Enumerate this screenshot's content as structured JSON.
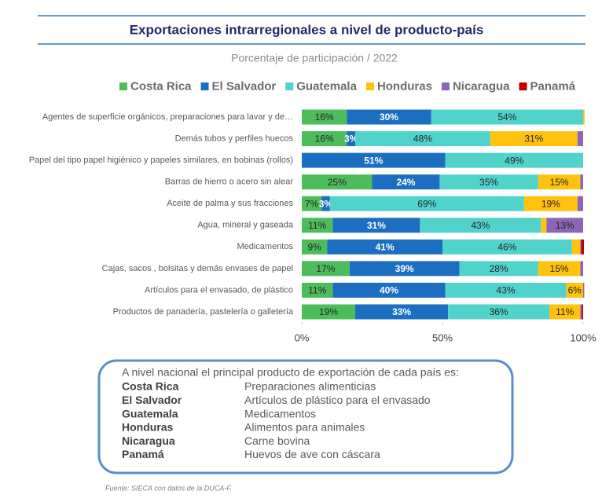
{
  "chart_data": {
    "type": "bar",
    "orientation": "horizontal",
    "stacked": true,
    "title": "Exportaciones intrarregionales a nivel de producto-país",
    "subtitle": "Porcentaje de participación / 2022",
    "categories": [
      "Agentes de superficie orgánicos, preparaciones para lavar y de…",
      "Demás tubos y perfiles huecos",
      "Papel del tipo papel higiénico y papeles similares, en bobinas (rollos)",
      "Barras de hierro o acero sin alear",
      "Aceite de palma y sus fracciones",
      "Agua, mineral y gaseada",
      "Medicamentos",
      "Cajas, sacos , bolsitas  y demás envases de papel",
      "Artículos para el  envasado, de plástico",
      "Productos de panadería, pastelería o galletería"
    ],
    "series": [
      {
        "name": "Costa Rica",
        "color": "#4dbd5b",
        "values": [
          16,
          16,
          0,
          25,
          7,
          11,
          9,
          17,
          11,
          19
        ],
        "value_labels": [
          "16%",
          "16%",
          null,
          "25%",
          "7%",
          "11%",
          "9%",
          "17%",
          "11%",
          "19%"
        ]
      },
      {
        "name": "El Salvador",
        "color": "#1c6ec0",
        "values": [
          30,
          3,
          51,
          24,
          3,
          31,
          41,
          39,
          40,
          33
        ],
        "value_labels": [
          "30%",
          "3%",
          "51%",
          "24%",
          "3%",
          "31%",
          "41%",
          "39%",
          "40%",
          "33%"
        ]
      },
      {
        "name": "Guatemala",
        "color": "#4fd3cb",
        "values": [
          54,
          48,
          49,
          35,
          69,
          43,
          46,
          28,
          43,
          36
        ],
        "value_labels": [
          "54%",
          "48%",
          "49%",
          "35%",
          "69%",
          "43%",
          "46%",
          "28%",
          "43%",
          "36%"
        ]
      },
      {
        "name": "Honduras",
        "color": "#ffc20e",
        "values": [
          0.5,
          31,
          0,
          15,
          19,
          2,
          3,
          15,
          6,
          11
        ],
        "value_labels": [
          null,
          "31%",
          null,
          "15%",
          "19%",
          null,
          null,
          "15%",
          "6%",
          "11%"
        ]
      },
      {
        "name": "Nicaragua",
        "color": "#8b65b7",
        "values": [
          0,
          2,
          0,
          1,
          2,
          13,
          0.3,
          1,
          0.4,
          0.5
        ],
        "value_labels": [
          null,
          null,
          null,
          null,
          null,
          "13%",
          null,
          null,
          null,
          null
        ]
      },
      {
        "name": "Panamá",
        "color": "#c00000",
        "values": [
          0,
          0,
          0,
          0,
          0,
          0,
          1,
          0,
          0,
          0.5
        ],
        "value_labels": [
          null,
          null,
          null,
          null,
          null,
          null,
          null,
          null,
          null,
          null
        ]
      }
    ],
    "xlim": [
      0,
      100
    ],
    "xticks": [
      {
        "value": 0,
        "label": "0%"
      },
      {
        "value": 50,
        "label": "50%"
      },
      {
        "value": 100,
        "label": "100%"
      }
    ]
  },
  "summary": {
    "heading": "A nivel nacional el principal producto de exportación de cada país es:",
    "rows": [
      [
        "Costa Rica",
        "Preparaciones alimenticias"
      ],
      [
        "El Salvador",
        "Artículos de plástico para el envasado"
      ],
      [
        "Guatemala",
        "Medicamentos"
      ],
      [
        "Honduras",
        "Alimentos para animales"
      ],
      [
        "Nicaragua",
        "Carne bovina"
      ],
      [
        "Panamá",
        "Huevos de ave con cáscara"
      ]
    ]
  },
  "source": "Fuente: SIECA con datos de la DUCA-F."
}
